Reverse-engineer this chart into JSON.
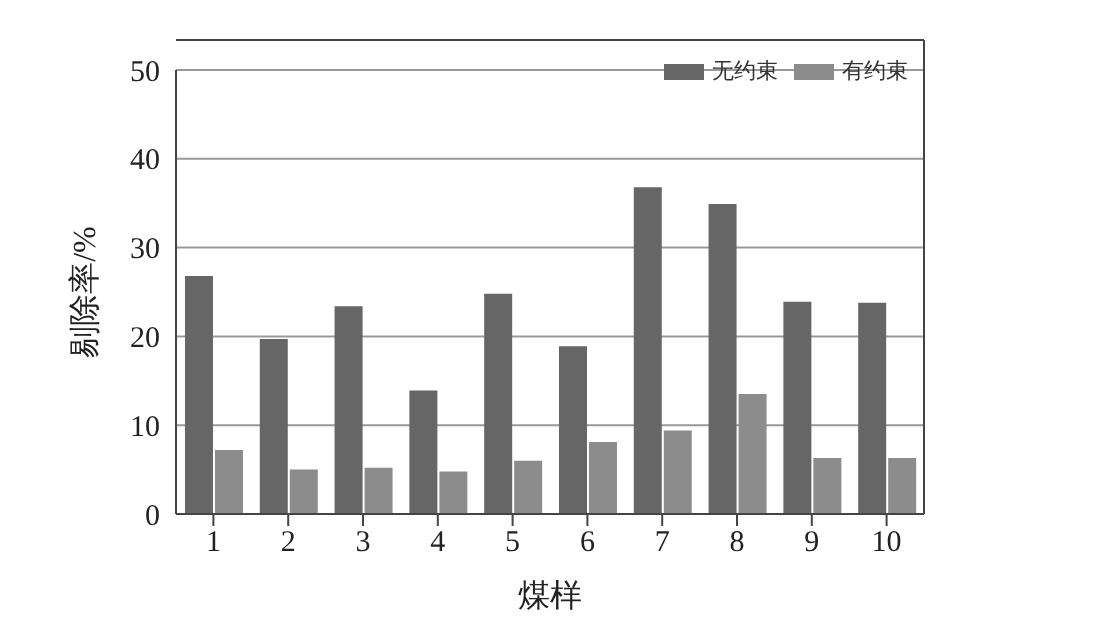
{
  "chart_data": {
    "type": "bar",
    "xlabel": "煤样",
    "ylabel": "剔除率/%",
    "categories": [
      "1",
      "2",
      "3",
      "4",
      "5",
      "6",
      "7",
      "8",
      "9",
      "10"
    ],
    "series": [
      {
        "name": "无约束",
        "color": "#666666",
        "values": [
          26.8,
          19.7,
          23.4,
          13.9,
          24.8,
          18.9,
          36.8,
          34.9,
          23.9,
          23.8
        ]
      },
      {
        "name": "有约束",
        "color": "#8c8c8c",
        "values": [
          7.2,
          5.0,
          5.2,
          4.8,
          6.0,
          8.1,
          9.4,
          13.5,
          6.3,
          6.3
        ]
      }
    ],
    "ylim": [
      0,
      50
    ],
    "yticks": [
      0,
      10,
      20,
      30,
      40,
      50
    ],
    "grid": "y",
    "legend": "top right"
  }
}
